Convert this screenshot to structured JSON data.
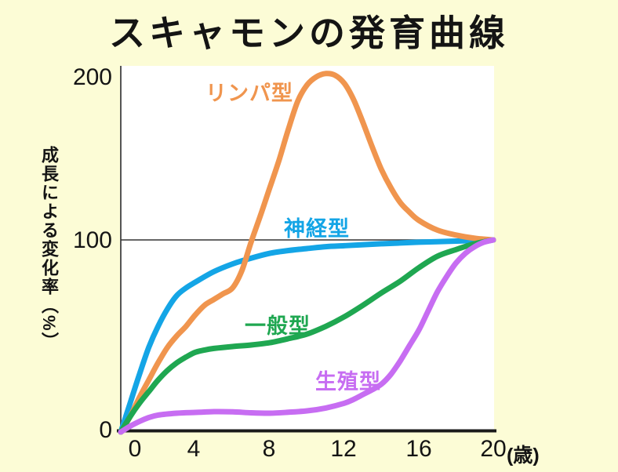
{
  "chart": {
    "title": "スキャモンの発育曲線"
  },
  "axis": {
    "y_tick_labels": [
      "200",
      "100",
      "0"
    ],
    "x_tick_labels": [
      "0",
      "4",
      "8",
      "12",
      "16",
      "20"
    ],
    "x_unit": "(歳)",
    "y_axis_title": "成長による変化率（%）"
  },
  "chart_data": {
    "type": "line",
    "title": "スキャモンの発育曲線",
    "xlabel": "(歳)",
    "ylabel": "成長による変化率（%）",
    "xlim": [
      0,
      20
    ],
    "ylim": [
      0,
      210
    ],
    "x_ticks": [
      0,
      4,
      8,
      12,
      16,
      20
    ],
    "y_ticks": [
      0,
      100,
      200
    ],
    "grid": false,
    "reference_line_y": 100,
    "legend_position": "labels-on-curves",
    "series": [
      {
        "name": "リンパ型",
        "color": "#F0954E",
        "points": [
          [
            0,
            0
          ],
          [
            0.5,
            8
          ],
          [
            1,
            18
          ],
          [
            1.5,
            27
          ],
          [
            2,
            36
          ],
          [
            2.5,
            44
          ],
          [
            3,
            50
          ],
          [
            3.5,
            55
          ],
          [
            4,
            61
          ],
          [
            4.5,
            66
          ],
          [
            5,
            69
          ],
          [
            5.5,
            72
          ],
          [
            6,
            75
          ],
          [
            6.5,
            84
          ],
          [
            7,
            99
          ],
          [
            7.5,
            115
          ],
          [
            8,
            132
          ],
          [
            8.5,
            149
          ],
          [
            9,
            168
          ],
          [
            9.5,
            185
          ],
          [
            10,
            195
          ],
          [
            10.5,
            200
          ],
          [
            11,
            202
          ],
          [
            11.5,
            201
          ],
          [
            12,
            196
          ],
          [
            12.5,
            186
          ],
          [
            13,
            172
          ],
          [
            13.5,
            157
          ],
          [
            14,
            143
          ],
          [
            14.5,
            132
          ],
          [
            15,
            123
          ],
          [
            15.5,
            117
          ],
          [
            16,
            112
          ],
          [
            17,
            106
          ],
          [
            18,
            103
          ],
          [
            19,
            101
          ],
          [
            20,
            100
          ]
        ]
      },
      {
        "name": "神経型",
        "color": "#14A5E6",
        "points": [
          [
            0,
            0
          ],
          [
            0.5,
            15
          ],
          [
            1,
            30
          ],
          [
            1.5,
            44
          ],
          [
            2,
            55
          ],
          [
            2.5,
            64
          ],
          [
            3,
            71
          ],
          [
            3.5,
            75
          ],
          [
            4,
            78
          ],
          [
            5,
            83.5
          ],
          [
            6,
            87.5
          ],
          [
            7,
            90.5
          ],
          [
            8,
            93
          ],
          [
            9,
            94.5
          ],
          [
            10,
            95.5
          ],
          [
            11,
            96.5
          ],
          [
            12,
            97
          ],
          [
            13,
            97.5
          ],
          [
            14,
            98
          ],
          [
            15,
            98.4
          ],
          [
            16,
            98.8
          ],
          [
            17,
            99.1
          ],
          [
            18,
            99.4
          ],
          [
            19,
            99.7
          ],
          [
            20,
            100
          ]
        ]
      },
      {
        "name": "一般型",
        "color": "#1FA751",
        "points": [
          [
            0,
            0
          ],
          [
            0.5,
            8
          ],
          [
            1,
            15
          ],
          [
            1.5,
            21
          ],
          [
            2,
            27
          ],
          [
            2.5,
            32
          ],
          [
            3,
            36
          ],
          [
            3.5,
            39
          ],
          [
            4,
            41.5
          ],
          [
            4.5,
            42.7
          ],
          [
            5,
            43.5
          ],
          [
            6,
            44.5
          ],
          [
            7,
            45.3
          ],
          [
            8,
            46.5
          ],
          [
            9,
            48.6
          ],
          [
            10,
            51
          ],
          [
            11,
            55
          ],
          [
            12,
            60
          ],
          [
            13,
            66
          ],
          [
            14,
            72.5
          ],
          [
            15,
            78.5
          ],
          [
            16,
            85.5
          ],
          [
            17,
            91.5
          ],
          [
            18,
            95
          ],
          [
            19,
            98
          ],
          [
            20,
            100
          ]
        ]
      },
      {
        "name": "生殖型",
        "color": "#C76DF2",
        "points": [
          [
            0,
            0
          ],
          [
            0.5,
            3
          ],
          [
            1,
            5.5
          ],
          [
            1.5,
            7.5
          ],
          [
            2,
            8.8
          ],
          [
            3,
            9.8
          ],
          [
            4,
            10.2
          ],
          [
            5,
            10.6
          ],
          [
            6,
            10.5
          ],
          [
            7,
            10
          ],
          [
            8,
            9.8
          ],
          [
            9,
            10.3
          ],
          [
            10,
            11
          ],
          [
            11,
            12.5
          ],
          [
            12,
            15
          ],
          [
            12.5,
            17
          ],
          [
            13,
            19.5
          ],
          [
            13.5,
            22
          ],
          [
            14,
            25
          ],
          [
            14.5,
            30
          ],
          [
            15,
            37
          ],
          [
            15.5,
            45
          ],
          [
            16,
            53
          ],
          [
            16.5,
            63
          ],
          [
            17,
            73
          ],
          [
            17.5,
            81
          ],
          [
            18,
            88
          ],
          [
            18.5,
            93
          ],
          [
            19,
            96.5
          ],
          [
            19.5,
            98.8
          ],
          [
            20,
            100
          ]
        ]
      }
    ]
  },
  "colors": {
    "background": "#FCFCD6",
    "plot_background": "#FFFFFF",
    "axis": "#1A1A1A",
    "reference_line": "#333333",
    "text": "#141414"
  }
}
